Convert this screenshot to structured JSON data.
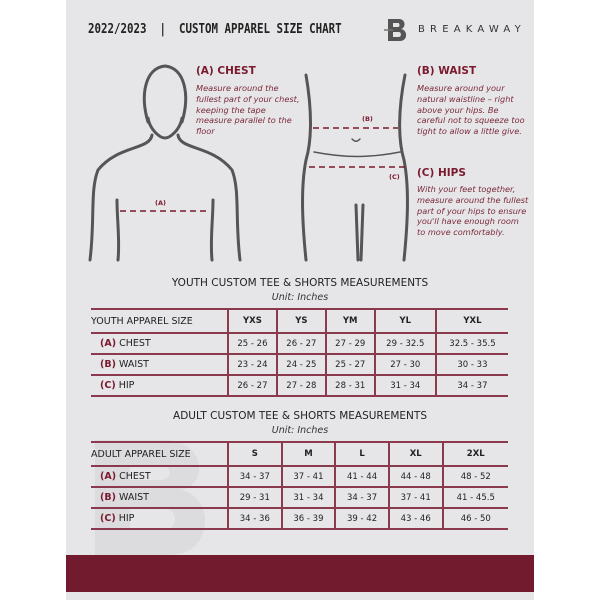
{
  "header": {
    "title": "2022/2023  |  CUSTOM APPAREL SIZE CHART",
    "brand": "BREAKAWAY",
    "logo_letter": "B"
  },
  "guides": {
    "chest": {
      "heading": "(A) CHEST",
      "text": "Measure around the fullest part of your chest, keeping the tape measure parallel to the floor",
      "marker": "(A)"
    },
    "waist": {
      "heading": "(B) WAIST",
      "text": "Measure around your natural waistline – right above your hips. Be careful not to squeeze too tight to allow a little give.",
      "marker": "(B)"
    },
    "hips": {
      "heading": "(C) HIPS",
      "text": "With your feet together, measure around the fullest part of your hips to ensure you'll have enough room to move comfortably.",
      "marker": "(C)"
    }
  },
  "youth": {
    "title": "YOUTH CUSTOM TEE & SHORTS MEASUREMENTS",
    "unit": "Unit: Inches",
    "header": [
      "YOUTH APPAREL SIZE",
      "YXS",
      "YS",
      "YM",
      "YL",
      "YXL"
    ],
    "rows": [
      {
        "key": "(A)",
        "label": "CHEST",
        "values": [
          "25 - 26",
          "26 - 27",
          "27 - 29",
          "29 - 32.5",
          "32.5 - 35.5"
        ]
      },
      {
        "key": "(B)",
        "label": "WAIST",
        "values": [
          "23 - 24",
          "24 - 25",
          "25 - 27",
          "27 - 30",
          "30 - 33"
        ]
      },
      {
        "key": "(C)",
        "label": "HIP",
        "values": [
          "26 - 27",
          "27 - 28",
          "28 - 31",
          "31 - 34",
          "34 - 37"
        ]
      }
    ]
  },
  "adult": {
    "title": "ADULT CUSTOM TEE & SHORTS MEASUREMENTS",
    "unit": "Unit: Inches",
    "header": [
      "ADULT APPAREL SIZE",
      "S",
      "M",
      "L",
      "XL",
      "2XL"
    ],
    "rows": [
      {
        "key": "(A)",
        "label": "CHEST",
        "values": [
          "34 - 37",
          "37 - 41",
          "41 - 44",
          "44 - 48",
          "48 - 52"
        ]
      },
      {
        "key": "(B)",
        "label": "WAIST",
        "values": [
          "29 - 31",
          "31 - 34",
          "34 - 37",
          "37 - 41",
          "41 - 45.5"
        ]
      },
      {
        "key": "(C)",
        "label": "HIP",
        "values": [
          "34 - 36",
          "36 - 39",
          "39 - 42",
          "43 - 46",
          "46 - 50"
        ]
      }
    ]
  },
  "colors": {
    "accent": "#721a2e",
    "background": "#e6e6e8"
  }
}
